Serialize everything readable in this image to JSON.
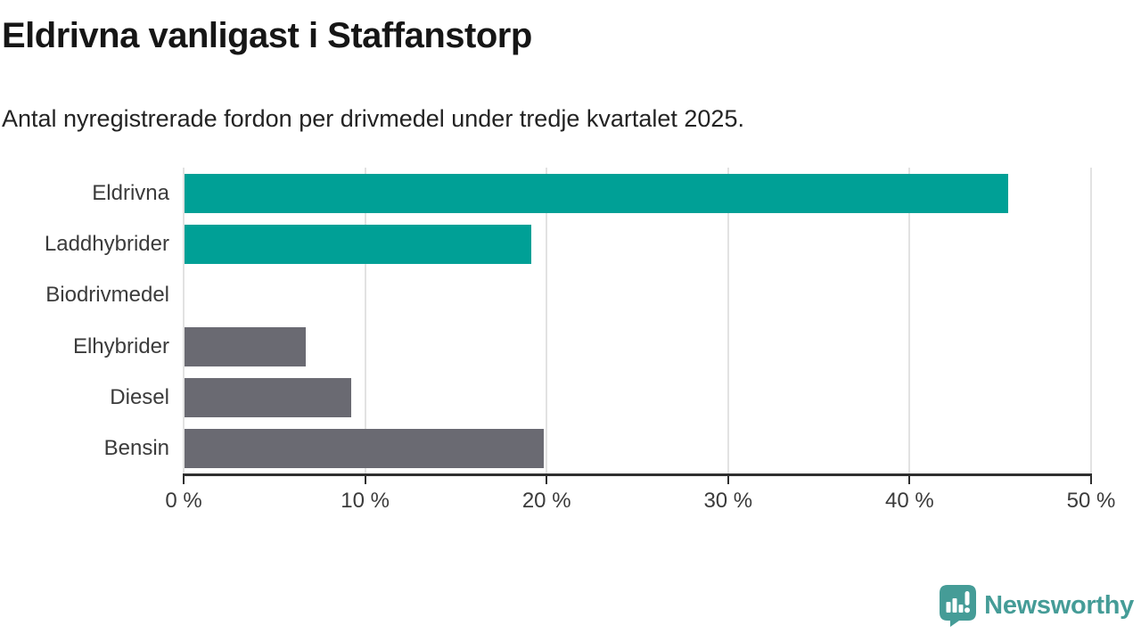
{
  "chart_data": {
    "type": "bar",
    "orientation": "horizontal",
    "title": "Eldrivna vanligast i Staffanstorp",
    "subtitle": "Antal nyregistrerade fordon per drivmedel under tredje kvartalet 2025.",
    "categories": [
      "Eldrivna",
      "Laddhybrider",
      "Biodrivmedel",
      "Elhybrider",
      "Diesel",
      "Bensin"
    ],
    "values": [
      45.4,
      19.1,
      0,
      6.7,
      9.2,
      19.8
    ],
    "unit": "%",
    "bar_colors": [
      "#00A096",
      "#00A096",
      "#6A6A72",
      "#6A6A72",
      "#6A6A72",
      "#6A6A72"
    ],
    "xlim": [
      0,
      50
    ],
    "xticks": [
      0,
      10,
      20,
      30,
      40,
      50
    ],
    "xtick_suffix": " %",
    "grid": true,
    "legend": false,
    "xlabel": "",
    "ylabel": ""
  },
  "branding": {
    "logo_text": "Newsworthy",
    "logo_icon": "speech-bubble-bar-chart-exclamation"
  },
  "colors": {
    "highlight": "#00A096",
    "neutral": "#6A6A72",
    "gridline": "#E2E2E2",
    "axis": "#2F2F2F",
    "label_text": "#3B3B3B",
    "title_text": "#161616",
    "logo": "#459C97",
    "background": "#FFFFFF"
  }
}
